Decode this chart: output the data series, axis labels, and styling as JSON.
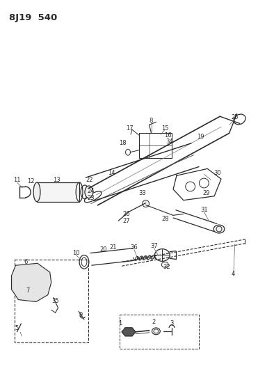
{
  "title": "8J19 540",
  "bg_color": "#ffffff",
  "line_color": "#2a2a2a",
  "figsize": [
    3.71,
    5.33
  ],
  "dpi": 100,
  "label_fs": 6.0
}
